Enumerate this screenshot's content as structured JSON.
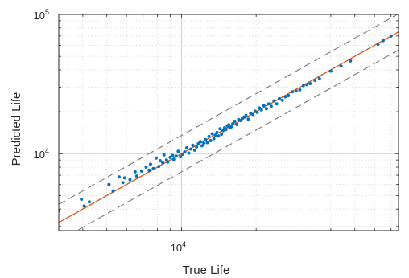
{
  "chart_data": {
    "type": "scatter",
    "title": "",
    "xlabel": "True Life",
    "ylabel": "Predicted Life",
    "xscale": "log",
    "yscale": "log",
    "xlim": [
      3200,
      75000
    ],
    "ylim": [
      2800,
      100000
    ],
    "grid": "major and minor, dotted",
    "x_ticks": [
      {
        "base": "10",
        "exp": "4",
        "value": 10000
      }
    ],
    "y_ticks": [
      {
        "base": "10",
        "exp": "4",
        "value": 10000
      },
      {
        "base": "10",
        "exp": "5",
        "value": 100000
      }
    ],
    "colors": {
      "points": "#0072BD",
      "fit_line": "#D95319",
      "band_lines": "#808080",
      "grid": "#c8c8c8",
      "axes": "#262626"
    },
    "fit_line": {
      "y_equals_x": true
    },
    "band_lines": {
      "factors": [
        1.35,
        0.74
      ]
    },
    "points": {
      "x": [
        3200,
        3950,
        4050,
        4250,
        5100,
        5300,
        5600,
        5800,
        5900,
        6200,
        6500,
        6600,
        6900,
        7200,
        7400,
        7500,
        7700,
        7900,
        8100,
        8200,
        8400,
        8500,
        8700,
        8800,
        9000,
        9200,
        9300,
        9500,
        9700,
        9900,
        10100,
        10300,
        10500,
        10700,
        10900,
        11100,
        11300,
        11500,
        11700,
        11900,
        12100,
        12300,
        12500,
        12700,
        12900,
        13100,
        13300,
        13500,
        13700,
        13900,
        14100,
        14300,
        14500,
        14700,
        14900,
        15100,
        15300,
        15500,
        15700,
        15900,
        16100,
        16400,
        16700,
        17000,
        17300,
        17600,
        17900,
        18200,
        18600,
        19000,
        19400,
        19800,
        20200,
        20600,
        21000,
        21500,
        22000,
        22500,
        23000,
        23600,
        24200,
        24800,
        25500,
        26200,
        27000,
        28000,
        29000,
        30000,
        31000,
        32000,
        33000,
        34500,
        36000,
        40000,
        44000,
        48000,
        62000,
        65000,
        70000
      ],
      "y": [
        3900,
        4700,
        4200,
        4500,
        6000,
        5400,
        6800,
        6200,
        6700,
        6500,
        7400,
        6900,
        7500,
        8000,
        7600,
        8400,
        7800,
        9300,
        8100,
        8900,
        8600,
        9800,
        9000,
        8700,
        9400,
        9700,
        9100,
        9600,
        10400,
        9500,
        9900,
        10300,
        11000,
        10100,
        10800,
        11500,
        10600,
        11200,
        11800,
        12200,
        11400,
        11900,
        12600,
        12000,
        13300,
        12400,
        13900,
        12800,
        13600,
        14200,
        13400,
        15100,
        13800,
        14600,
        15300,
        14900,
        15800,
        16100,
        15300,
        15600,
        16400,
        17100,
        16200,
        17600,
        17300,
        17900,
        18300,
        18800,
        17700,
        19500,
        19100,
        20200,
        19800,
        21300,
        20600,
        22100,
        21000,
        22800,
        21900,
        23900,
        22800,
        24800,
        24200,
        25600,
        26100,
        27800,
        28300,
        28700,
        30800,
        31300,
        31900,
        33600,
        34600,
        39200,
        42500,
        46300,
        61000,
        64800,
        70000
      ]
    }
  }
}
